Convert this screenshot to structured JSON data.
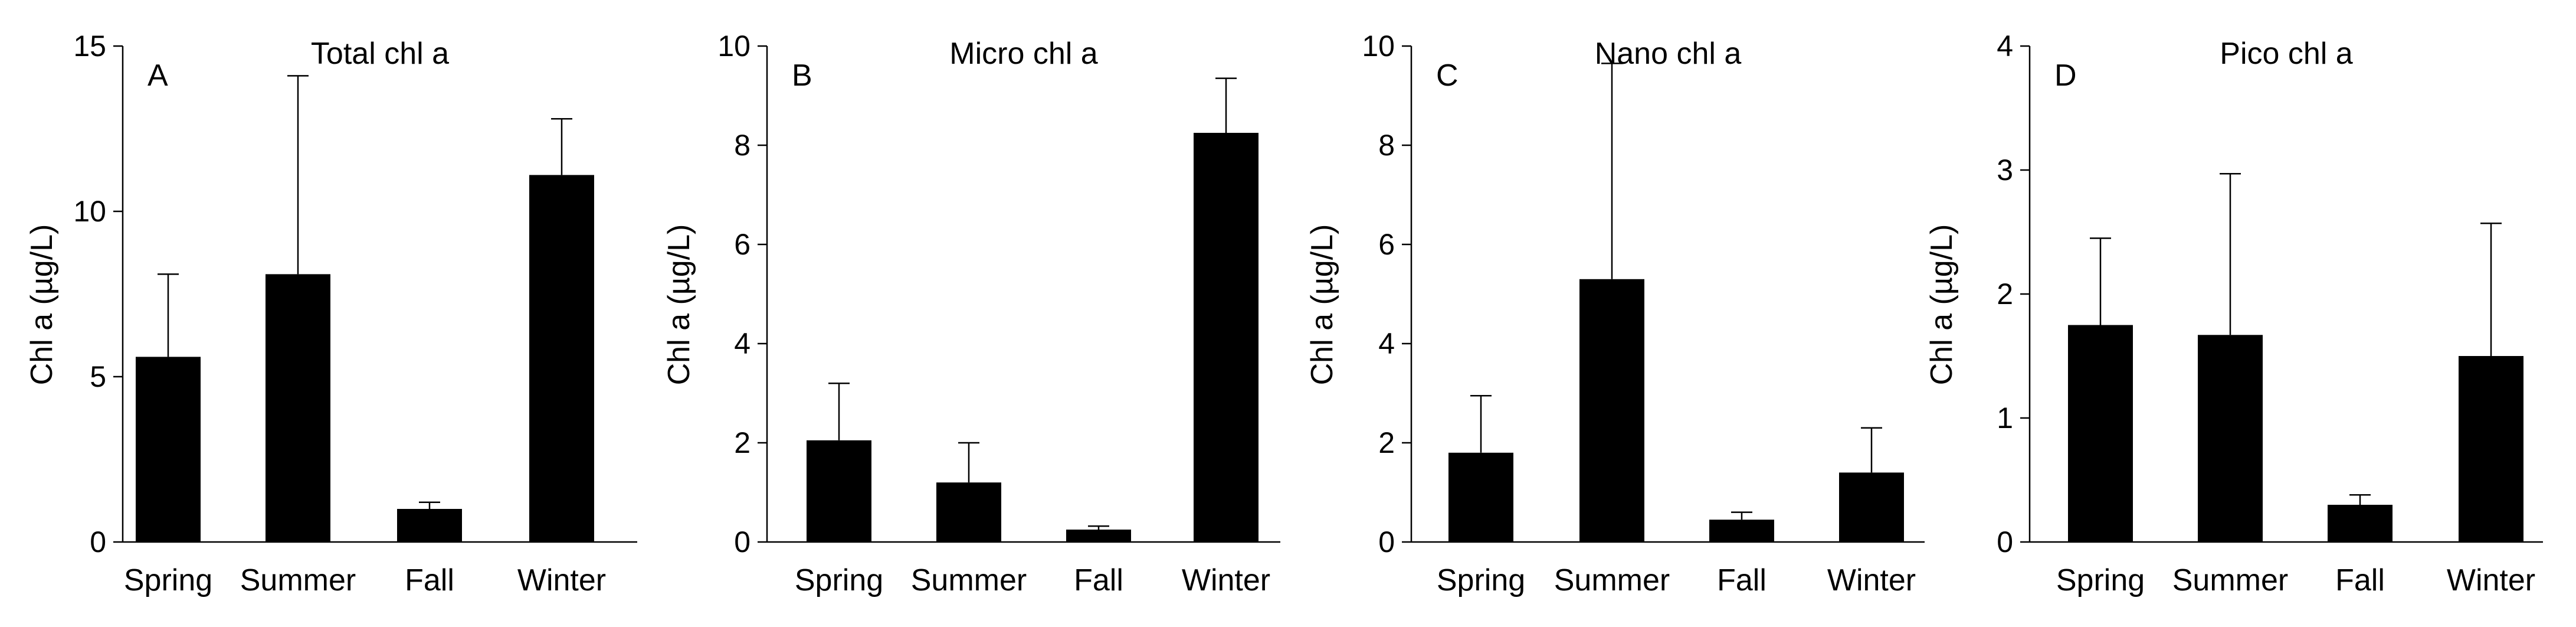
{
  "chart_data": [
    {
      "type": "bar",
      "panel_letter": "A",
      "title": "Total chl a",
      "ylabel": "Chl a (µg/L)",
      "xlabel": "",
      "categories": [
        "Spring",
        "Summer",
        "Fall",
        "Winter"
      ],
      "values": [
        5.6,
        8.1,
        1.0,
        11.1
      ],
      "errors": [
        2.5,
        6.0,
        0.2,
        1.7
      ],
      "ylim": [
        0,
        15
      ],
      "yticks": [
        0,
        5,
        10,
        15
      ],
      "bar_color": "#000000",
      "grid": false
    },
    {
      "type": "bar",
      "panel_letter": "B",
      "title": "Micro chl a",
      "ylabel": "Chl a (µg/L)",
      "xlabel": "",
      "categories": [
        "Spring",
        "Summer",
        "Fall",
        "Winter"
      ],
      "values": [
        2.05,
        1.2,
        0.25,
        8.25
      ],
      "errors": [
        1.15,
        0.8,
        0.07,
        1.1
      ],
      "ylim": [
        0,
        10
      ],
      "yticks": [
        0,
        2,
        4,
        6,
        8,
        10
      ],
      "bar_color": "#000000",
      "grid": false
    },
    {
      "type": "bar",
      "panel_letter": "C",
      "title": "Nano chl a",
      "ylabel": "Chl a (µg/L)",
      "xlabel": "",
      "categories": [
        "Spring",
        "Summer",
        "Fall",
        "Winter"
      ],
      "values": [
        1.8,
        5.3,
        0.45,
        1.4
      ],
      "errors": [
        1.15,
        4.35,
        0.15,
        0.9
      ],
      "ylim": [
        0,
        10
      ],
      "yticks": [
        0,
        2,
        4,
        6,
        8,
        10
      ],
      "bar_color": "#000000",
      "grid": false
    },
    {
      "type": "bar",
      "panel_letter": "D",
      "title": "Pico chl a",
      "ylabel": "Chl a (µg/L)",
      "xlabel": "",
      "categories": [
        "Spring",
        "Summer",
        "Fall",
        "Winter"
      ],
      "values": [
        1.75,
        1.67,
        0.3,
        1.5
      ],
      "errors": [
        0.7,
        1.3,
        0.08,
        1.07
      ],
      "ylim": [
        0,
        4
      ],
      "yticks": [
        0,
        1,
        2,
        3,
        4
      ],
      "bar_color": "#000000",
      "grid": false
    }
  ]
}
